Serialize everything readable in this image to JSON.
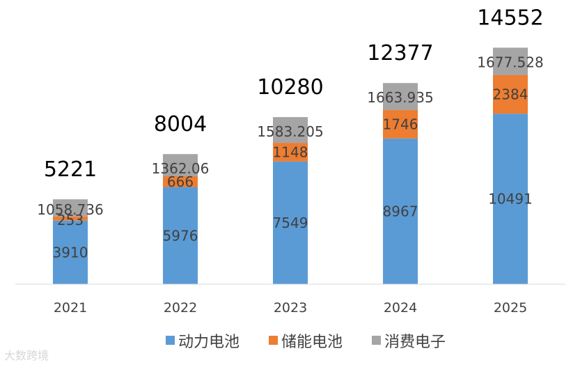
{
  "chart_data": {
    "type": "bar",
    "stacked": true,
    "categories": [
      "2021",
      "2022",
      "2023",
      "2024",
      "2025"
    ],
    "series": [
      {
        "name": "动力电池",
        "values": [
          3910,
          5976,
          7549,
          8967,
          10491
        ],
        "labels": [
          "3910",
          "5976",
          "7549",
          "8967",
          "10491"
        ],
        "color": "#5B9BD5"
      },
      {
        "name": "储能电池",
        "values": [
          253,
          666,
          1148,
          1746,
          2384
        ],
        "labels": [
          "253",
          "666",
          "1148",
          "1746",
          "2384"
        ],
        "color": "#ED7D31"
      },
      {
        "name": "消费电子",
        "values": [
          1058.736,
          1362.06,
          1583.205,
          1663.935,
          1677.528
        ],
        "labels": [
          "1058.736",
          "1362.06",
          "1583.205",
          "1663.935",
          "1677.528"
        ],
        "color": "#A5A5A5"
      }
    ],
    "totals": [
      "5221",
      "8004",
      "10280",
      "12377",
      "14552"
    ],
    "ylim": [
      0,
      15500
    ],
    "grid": false,
    "legend_position": "bottom"
  },
  "watermark": "大数跨境"
}
